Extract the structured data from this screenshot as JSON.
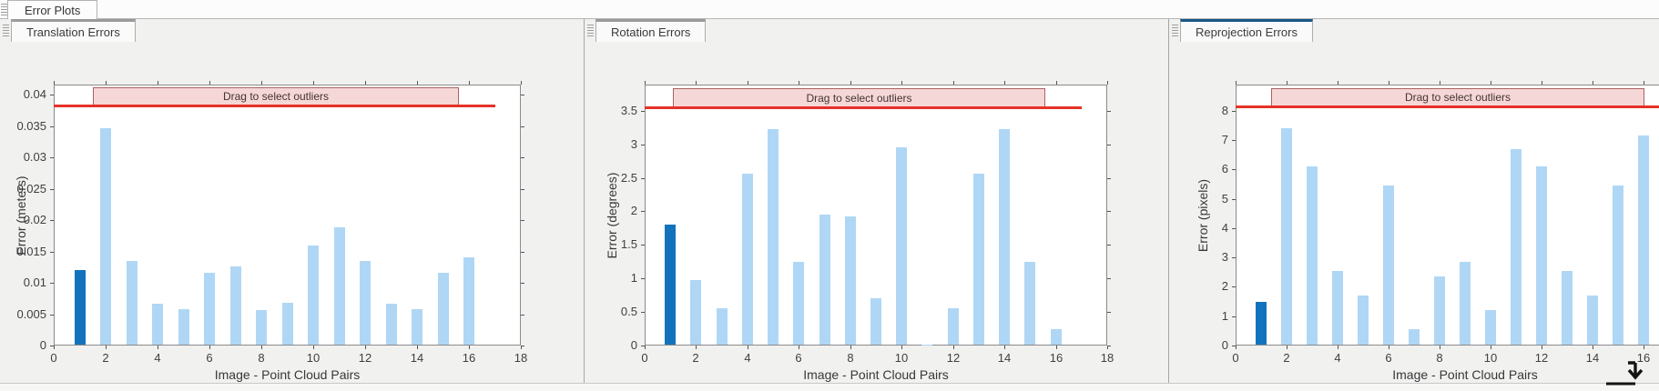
{
  "window": {
    "group_tab": "Error Plots"
  },
  "panels": [
    {
      "tab": "Translation Errors",
      "active": false
    },
    {
      "tab": "Rotation Errors",
      "active": false
    },
    {
      "tab": "Reprojection Errors",
      "active": true
    }
  ],
  "chart_data": [
    {
      "type": "bar",
      "title": "Translation Errors",
      "xlabel": "Image - Point Cloud Pairs",
      "ylabel": "Error (meters)",
      "xlim": [
        0,
        18
      ],
      "ylim": [
        0,
        0.0416
      ],
      "xticks": [
        0,
        2,
        4,
        6,
        8,
        10,
        12,
        14,
        16,
        18
      ],
      "yticks": [
        0,
        0.005,
        0.01,
        0.015,
        0.02,
        0.025,
        0.03,
        0.035,
        0.04
      ],
      "ytick_labels": [
        "0",
        "0.005",
        "0.01",
        "0.015",
        "0.02",
        "0.025",
        "0.03",
        "0.035",
        "0.04"
      ],
      "x": [
        1,
        2,
        3,
        4,
        5,
        6,
        7,
        8,
        9,
        10,
        11,
        12,
        13,
        14,
        15,
        16
      ],
      "values": [
        0.0121,
        0.0346,
        0.0135,
        0.0067,
        0.0058,
        0.0116,
        0.0126,
        0.0056,
        0.0068,
        0.016,
        0.0189,
        0.0135,
        0.0067,
        0.0058,
        0.0116,
        0.014
      ],
      "highlight_index": 0,
      "bar_color": "#AFD7F5",
      "highlight_color": "#1273BC",
      "threshold_line": {
        "value": 0.0383,
        "x_extent": [
          0,
          17
        ],
        "color": "#E53228"
      },
      "outlier_band": {
        "label": "Drag to select outliers",
        "x": [
          1.5,
          15.6
        ],
        "y": [
          0.0383,
          0.0412
        ],
        "fill": "#F6D7D7",
        "border": "#A96262"
      },
      "grid": false,
      "legend": null
    },
    {
      "type": "bar",
      "title": "Rotation Errors",
      "xlabel": "Image - Point Cloud Pairs",
      "ylabel": "Error (degrees)",
      "xlim": [
        0,
        18
      ],
      "ylim": [
        0,
        3.89
      ],
      "xticks": [
        0,
        2,
        4,
        6,
        8,
        10,
        12,
        14,
        16,
        18
      ],
      "yticks": [
        0,
        0.5,
        1,
        1.5,
        2,
        2.5,
        3,
        3.5
      ],
      "ytick_labels": [
        "0",
        "0.5",
        "1",
        "1.5",
        "2",
        "2.5",
        "3",
        "3.5"
      ],
      "x": [
        1,
        2,
        3,
        4,
        5,
        6,
        7,
        8,
        9,
        10,
        11,
        12,
        13,
        14,
        15,
        16
      ],
      "values": [
        1.8,
        0.97,
        0.56,
        2.56,
        3.23,
        1.25,
        1.95,
        1.92,
        0.71,
        2.96,
        0.02,
        0.56,
        2.56,
        3.23,
        1.25,
        0.25
      ],
      "highlight_index": 0,
      "bar_color": "#AFD7F5",
      "highlight_color": "#1273BC",
      "threshold_line": {
        "value": 3.55,
        "x_extent": [
          0,
          17
        ],
        "color": "#E53228"
      },
      "outlier_band": {
        "label": "Drag to select outliers",
        "x": [
          1.1,
          15.6
        ],
        "y": [
          3.55,
          3.84
        ],
        "fill": "#F6D7D7",
        "border": "#A96262"
      },
      "grid": false,
      "legend": null
    },
    {
      "type": "bar",
      "title": "Reprojection Errors",
      "xlabel": "Image - Point Cloud Pairs",
      "ylabel": "Error (pixels)",
      "xlim": [
        0,
        18
      ],
      "ylim": [
        0,
        8.89
      ],
      "xticks": [
        0,
        2,
        4,
        6,
        8,
        10,
        12,
        14,
        16,
        18
      ],
      "yticks": [
        0,
        1,
        2,
        3,
        4,
        5,
        6,
        7,
        8
      ],
      "ytick_labels": [
        "0",
        "1",
        "2",
        "3",
        "4",
        "5",
        "6",
        "7",
        "8"
      ],
      "x": [
        1,
        2,
        3,
        4,
        5,
        6,
        7,
        8,
        9,
        10,
        11,
        12,
        13,
        14,
        15,
        16
      ],
      "values": [
        1.5,
        7.4,
        6.1,
        2.55,
        1.7,
        5.45,
        0.55,
        2.35,
        2.85,
        1.2,
        6.7,
        6.1,
        2.55,
        1.7,
        5.45,
        7.15
      ],
      "highlight_index": 0,
      "bar_color": "#AFD7F5",
      "highlight_color": "#1273BC",
      "threshold_line": {
        "value": 8.15,
        "x_extent": [
          0,
          17
        ],
        "color": "#E53228"
      },
      "outlier_band": {
        "label": "Drag to select outliers",
        "x": [
          1.4,
          16.05
        ],
        "y": [
          8.15,
          8.77
        ],
        "fill": "#F6D7D7",
        "border": "#A96262"
      },
      "grid": false,
      "legend": null
    }
  ],
  "colors": {
    "bar_light_blue": "#AFD7F5",
    "bar_dark_blue": "#1273BC",
    "threshold_red": "#E53228",
    "band_pink": "#F6D7D7",
    "active_tab_accent": "#1A5787",
    "panel_background": "#F1F1F0"
  },
  "icons": {
    "dock_arrow": "dock-down-arrow",
    "tab_grip": "grip-lines"
  }
}
